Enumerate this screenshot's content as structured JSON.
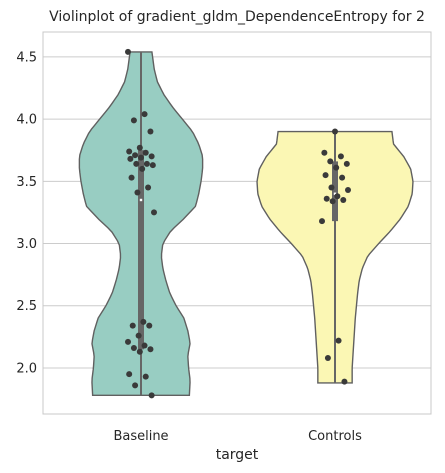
{
  "chart_data": {
    "type": "violin",
    "title": "Violinplot of gradient_gldm_DependenceEntropy for 2",
    "xlabel": "target",
    "ylabel": "",
    "ylim": [
      1.63,
      4.7
    ],
    "yticks": [
      2.0,
      2.5,
      3.0,
      3.5,
      4.0,
      4.5
    ],
    "ytick_labels": [
      "2.0",
      "2.5",
      "3.0",
      "3.5",
      "4.0",
      "4.5"
    ],
    "grid": true,
    "categories": [
      "Baseline",
      "Controls"
    ],
    "series": [
      {
        "category": "Baseline",
        "color": "#98cdc2",
        "range": [
          1.78,
          4.54
        ],
        "quartiles": [
          2.15,
          3.35,
          3.75
        ],
        "median": 3.35,
        "density_profile": [
          [
            1.78,
            0.62
          ],
          [
            1.9,
            0.63
          ],
          [
            2.0,
            0.61
          ],
          [
            2.1,
            0.6
          ],
          [
            2.2,
            0.63
          ],
          [
            2.3,
            0.6
          ],
          [
            2.4,
            0.55
          ],
          [
            2.5,
            0.45
          ],
          [
            2.6,
            0.37
          ],
          [
            2.7,
            0.32
          ],
          [
            2.8,
            0.28
          ],
          [
            2.9,
            0.26
          ],
          [
            3.0,
            0.28
          ],
          [
            3.1,
            0.38
          ],
          [
            3.2,
            0.55
          ],
          [
            3.3,
            0.7
          ],
          [
            3.4,
            0.74
          ],
          [
            3.5,
            0.77
          ],
          [
            3.6,
            0.79
          ],
          [
            3.7,
            0.79
          ],
          [
            3.8,
            0.74
          ],
          [
            3.9,
            0.66
          ],
          [
            4.0,
            0.53
          ],
          [
            4.1,
            0.4
          ],
          [
            4.2,
            0.29
          ],
          [
            4.3,
            0.21
          ],
          [
            4.4,
            0.17
          ],
          [
            4.54,
            0.14
          ]
        ],
        "points": [
          4.54,
          4.04,
          3.99,
          3.9,
          3.77,
          3.74,
          3.73,
          3.71,
          3.7,
          3.69,
          3.68,
          3.64,
          3.64,
          3.63,
          3.6,
          3.53,
          3.45,
          3.41,
          3.25,
          2.37,
          2.34,
          2.34,
          2.26,
          2.21,
          2.18,
          2.16,
          2.15,
          2.13,
          1.95,
          1.93,
          1.86,
          1.78
        ]
      },
      {
        "category": "Controls",
        "color": "#fbf7b4",
        "range": [
          1.88,
          3.9
        ],
        "quartiles": [
          3.18,
          3.4,
          3.66
        ],
        "median": 3.4,
        "density_profile": [
          [
            1.88,
            0.22
          ],
          [
            2.0,
            0.22
          ],
          [
            2.2,
            0.24
          ],
          [
            2.4,
            0.26
          ],
          [
            2.6,
            0.29
          ],
          [
            2.7,
            0.31
          ],
          [
            2.8,
            0.35
          ],
          [
            2.9,
            0.42
          ],
          [
            3.0,
            0.56
          ],
          [
            3.1,
            0.71
          ],
          [
            3.2,
            0.84
          ],
          [
            3.3,
            0.94
          ],
          [
            3.4,
            0.99
          ],
          [
            3.5,
            1.0
          ],
          [
            3.6,
            0.97
          ],
          [
            3.7,
            0.88
          ],
          [
            3.8,
            0.75
          ],
          [
            3.9,
            0.73
          ]
        ],
        "points": [
          3.9,
          3.73,
          3.7,
          3.66,
          3.64,
          3.61,
          3.55,
          3.53,
          3.45,
          3.43,
          3.38,
          3.36,
          3.35,
          3.34,
          3.18,
          2.22,
          2.08,
          1.89
        ]
      }
    ]
  }
}
